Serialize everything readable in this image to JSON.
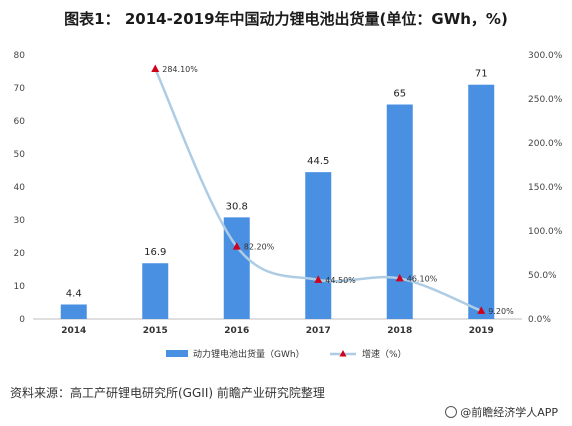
{
  "title": "图表1：  2014-2019年中国动力锂电池出货量(单位：GWh，%)",
  "source": "资料来源：高工产研锂电研究所(GGII) 前瞻产业研究院整理",
  "brand": "@前瞻经济学人APP",
  "colors": {
    "bar": "#4a90e2",
    "line": "#aecde4",
    "marker": "#d0021b"
  },
  "chart_data": {
    "type": "bar",
    "categories": [
      "2014",
      "2015",
      "2016",
      "2017",
      "2018",
      "2019"
    ],
    "series": [
      {
        "name": "动力锂电池出货量（GWh）",
        "type": "bar",
        "axis": "left",
        "values": [
          4.4,
          16.9,
          30.8,
          44.5,
          65,
          71
        ],
        "labels": [
          "4.4",
          "16.9",
          "30.8",
          "44.5",
          "65",
          "71"
        ]
      },
      {
        "name": "增速（%）",
        "type": "line",
        "axis": "right",
        "smooth": true,
        "values": [
          null,
          284.1,
          82.2,
          44.5,
          46.1,
          9.2
        ],
        "labels": [
          "",
          "284.10%",
          "82.20%",
          "44.50%",
          "46.10%",
          "9.20%"
        ]
      }
    ],
    "ylim_left": [
      0,
      80
    ],
    "yticks_left": [
      "0",
      "10",
      "20",
      "30",
      "40",
      "50",
      "60",
      "70",
      "80"
    ],
    "ylim_right": [
      0,
      300
    ],
    "yticks_right": [
      "0.0%",
      "50.0%",
      "100.0%",
      "150.0%",
      "200.0%",
      "250.0%",
      "300.0%"
    ],
    "legend": "bottom",
    "grid": false
  }
}
